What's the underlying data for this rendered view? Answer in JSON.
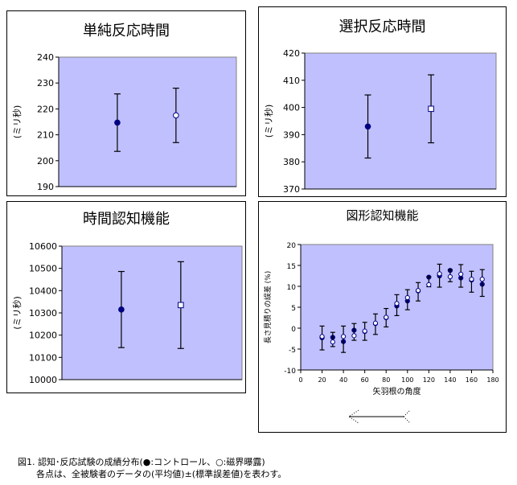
{
  "colors": {
    "plot_bg": "#c0c0ff",
    "control": "#000080",
    "exposed": "#ffffff",
    "plot_border": "#808080"
  },
  "chart_data": [
    {
      "type": "scatter",
      "title": "単純反応時間",
      "ylabel": "(ミリ秒)",
      "ylim": [
        190,
        240
      ],
      "yticks": [
        190,
        200,
        210,
        220,
        230,
        240
      ],
      "grid": false,
      "series": [
        {
          "marker": "filled-circle",
          "values": [
            214.7
          ],
          "yerr": [
            11.1
          ]
        },
        {
          "marker": "open-circle",
          "values": [
            217.5
          ],
          "yerr": [
            10.5
          ]
        }
      ]
    },
    {
      "type": "scatter",
      "title": "選択反応時間",
      "ylabel": "(ミリ秒)",
      "ylim": [
        370,
        420
      ],
      "yticks": [
        370,
        380,
        390,
        400,
        410,
        420
      ],
      "grid": false,
      "series": [
        {
          "marker": "filled-circle",
          "values": [
            393.0
          ],
          "yerr": [
            11.6
          ]
        },
        {
          "marker": "open-square",
          "values": [
            399.5
          ],
          "yerr": [
            12.5
          ]
        }
      ]
    },
    {
      "type": "scatter",
      "title": "時間認知機能",
      "ylabel": "(ミリ秒)",
      "ylim": [
        10000,
        10600
      ],
      "yticks": [
        10000,
        10100,
        10200,
        10300,
        10400,
        10500,
        10600
      ],
      "grid": false,
      "series": [
        {
          "marker": "filled-circle",
          "values": [
            10315
          ],
          "yerr": [
            171
          ]
        },
        {
          "marker": "open-square",
          "values": [
            10335
          ],
          "yerr": [
            195
          ]
        }
      ]
    },
    {
      "type": "scatter",
      "title": "図形認知機能",
      "xlabel": "矢羽根の角度",
      "ylabel": "長さ見積りの誤差 (%)",
      "xlim": [
        0,
        180
      ],
      "ylim": [
        -10,
        20
      ],
      "xticks": [
        0,
        20,
        40,
        60,
        80,
        100,
        120,
        140,
        160,
        180
      ],
      "yticks": [
        -10,
        -5,
        0,
        5,
        10,
        15,
        20
      ],
      "grid": false,
      "x": [
        20,
        30,
        40,
        50,
        60,
        70,
        80,
        90,
        100,
        110,
        120,
        130,
        140,
        150,
        160,
        170
      ],
      "series": [
        {
          "marker": "filled-circle",
          "values": [
            -2.3,
            -2.2,
            -3.2,
            -0.5,
            -0.8,
            1.1,
            2.5,
            5.3,
            6.5,
            8.9,
            12.2,
            12.5,
            13.8,
            12.0,
            11.5,
            10.5
          ]
        },
        {
          "marker": "open-circle",
          "values": [
            -2.0,
            -3.3,
            -2.0,
            -1.8,
            -0.7,
            1.2,
            2.6,
            5.9,
            7.3,
            9.0,
            10.4,
            13.0,
            12.3,
            12.9,
            11.7,
            11.7
          ],
          "yerr_low": [
            -5.2,
            -4.4,
            -5.8,
            -2.9,
            -2.9,
            -1.5,
            0.3,
            3.0,
            4.4,
            6.5,
            9.9,
            9.8,
            11.1,
            9.8,
            8.6,
            7.6
          ],
          "yerr_high": [
            0.5,
            -1.0,
            0.5,
            1.1,
            1.4,
            3.4,
            4.7,
            8.0,
            9.2,
            10.9,
            12.3,
            15.3,
            14.0,
            15.2,
            13.6,
            14.0
          ]
        }
      ]
    }
  ],
  "caption": {
    "line1": "図1. 認知･反応試験の成績分布(●:コントロール、○:磁界曝露)",
    "line2": "各点は、全被験者のデータの(平均値)±(標準誤差値)を表わす。"
  }
}
